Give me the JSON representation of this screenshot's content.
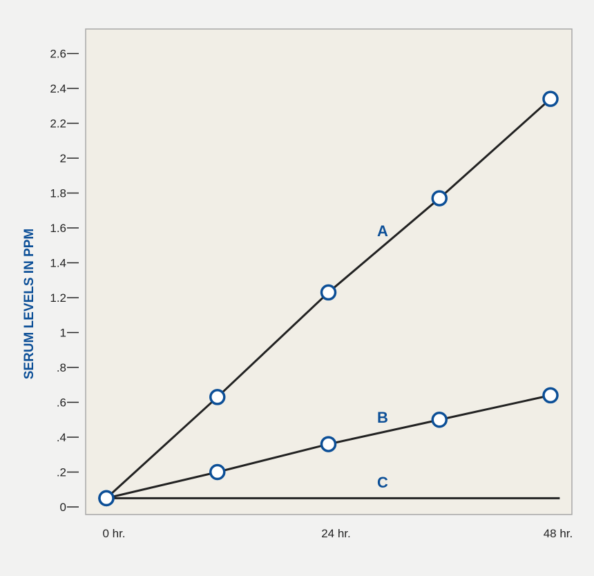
{
  "chart_data": {
    "type": "line",
    "ylabel": "SERUM LEVELS IN PPM",
    "xlabel": "",
    "x_ticks": [
      {
        "x": 0,
        "label": "0 hr."
      },
      {
        "x": 24,
        "label": "24 hr."
      },
      {
        "x": 48,
        "label": "48 hr."
      }
    ],
    "y_ticks": [
      {
        "v": 0,
        "label": "0"
      },
      {
        "v": 0.2,
        "label": ".2"
      },
      {
        "v": 0.4,
        "label": ".4"
      },
      {
        "v": 0.6,
        "label": ".6"
      },
      {
        "v": 0.8,
        "label": ".8"
      },
      {
        "v": 1.0,
        "label": "1"
      },
      {
        "v": 1.2,
        "label": "1.2"
      },
      {
        "v": 1.4,
        "label": "1.4"
      },
      {
        "v": 1.6,
        "label": "1.6"
      },
      {
        "v": 1.8,
        "label": "1.8"
      },
      {
        "v": 2.0,
        "label": "2"
      },
      {
        "v": 2.2,
        "label": "2.2"
      },
      {
        "v": 2.4,
        "label": "2.4"
      },
      {
        "v": 2.6,
        "label": "2.6"
      }
    ],
    "xlim": [
      -1.5,
      50
    ],
    "ylim": [
      -0.03,
      2.75
    ],
    "series": [
      {
        "name": "A",
        "x": [
          0,
          12,
          24,
          36,
          48
        ],
        "y": [
          0.05,
          0.63,
          1.23,
          1.77,
          2.34
        ],
        "markers": [
          0,
          12,
          24,
          36,
          48
        ]
      },
      {
        "name": "B",
        "x": [
          0,
          12,
          24,
          36,
          48
        ],
        "y": [
          0.05,
          0.2,
          0.36,
          0.5,
          0.64
        ],
        "markers": [
          0,
          12,
          24,
          36,
          48
        ]
      },
      {
        "name": "C",
        "x": [
          0,
          49
        ],
        "y": [
          0.05,
          0.05
        ],
        "markers": [
          0
        ]
      }
    ],
    "colors": {
      "plot_background": "#f1eee6",
      "frame": "#a7a7a7",
      "line": "#222222",
      "marker_stroke": "#0c4f97",
      "marker_fill": "#ffffff",
      "accent": "#0c4f97"
    },
    "grid": false,
    "legend": "inline"
  }
}
